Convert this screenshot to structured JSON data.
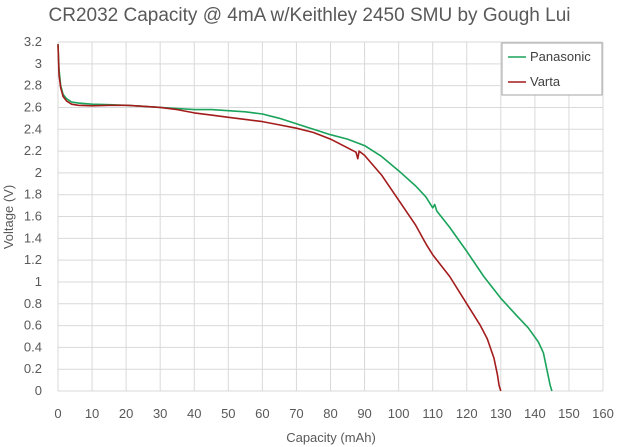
{
  "chart_data": {
    "type": "line",
    "title": "CR2032 Capacity @ 4mA w/Keithley 2450 SMU by Gough Lui",
    "xlabel": "Capacity (mAh)",
    "ylabel": "Voltage (V)",
    "xlim": [
      0,
      160
    ],
    "ylim": [
      0,
      3.2
    ],
    "xticks": [
      0,
      10,
      20,
      30,
      40,
      50,
      60,
      70,
      80,
      90,
      100,
      110,
      120,
      130,
      140,
      150,
      160
    ],
    "yticks": [
      0,
      0.2,
      0.4,
      0.6,
      0.8,
      1,
      1.2,
      1.4,
      1.6,
      1.8,
      2,
      2.2,
      2.4,
      2.6,
      2.8,
      3,
      3.2
    ],
    "grid": true,
    "legend_position": "top-right",
    "series": [
      {
        "name": "Panasonic",
        "color": "#1aa35a",
        "points": [
          [
            0,
            3.18
          ],
          [
            0.3,
            2.95
          ],
          [
            0.8,
            2.8
          ],
          [
            1.5,
            2.72
          ],
          [
            2.5,
            2.68
          ],
          [
            4,
            2.65
          ],
          [
            6,
            2.64
          ],
          [
            10,
            2.63
          ],
          [
            15,
            2.625
          ],
          [
            20,
            2.62
          ],
          [
            25,
            2.61
          ],
          [
            30,
            2.6
          ],
          [
            35,
            2.59
          ],
          [
            40,
            2.58
          ],
          [
            45,
            2.58
          ],
          [
            50,
            2.57
          ],
          [
            55,
            2.56
          ],
          [
            60,
            2.54
          ],
          [
            65,
            2.5
          ],
          [
            70,
            2.45
          ],
          [
            75,
            2.4
          ],
          [
            80,
            2.35
          ],
          [
            85,
            2.31
          ],
          [
            90,
            2.25
          ],
          [
            95,
            2.15
          ],
          [
            100,
            2.02
          ],
          [
            105,
            1.88
          ],
          [
            108,
            1.78
          ],
          [
            110,
            1.68
          ],
          [
            110.6,
            1.71
          ],
          [
            111.2,
            1.65
          ],
          [
            115,
            1.5
          ],
          [
            120,
            1.28
          ],
          [
            125,
            1.05
          ],
          [
            130,
            0.85
          ],
          [
            135,
            0.68
          ],
          [
            138,
            0.58
          ],
          [
            141,
            0.45
          ],
          [
            142.5,
            0.35
          ],
          [
            143.5,
            0.2
          ],
          [
            144.5,
            0.05
          ],
          [
            145,
            0
          ]
        ]
      },
      {
        "name": "Varta",
        "color": "#a31c1c",
        "points": [
          [
            0,
            3.18
          ],
          [
            0.3,
            2.9
          ],
          [
            0.8,
            2.78
          ],
          [
            1.5,
            2.7
          ],
          [
            2.5,
            2.66
          ],
          [
            4,
            2.63
          ],
          [
            6,
            2.62
          ],
          [
            10,
            2.615
          ],
          [
            15,
            2.62
          ],
          [
            20,
            2.62
          ],
          [
            25,
            2.61
          ],
          [
            30,
            2.6
          ],
          [
            35,
            2.58
          ],
          [
            40,
            2.55
          ],
          [
            45,
            2.53
          ],
          [
            50,
            2.51
          ],
          [
            55,
            2.49
          ],
          [
            60,
            2.47
          ],
          [
            65,
            2.44
          ],
          [
            70,
            2.41
          ],
          [
            75,
            2.37
          ],
          [
            80,
            2.31
          ],
          [
            85,
            2.23
          ],
          [
            87.5,
            2.19
          ],
          [
            88,
            2.13
          ],
          [
            88.4,
            2.2
          ],
          [
            90,
            2.16
          ],
          [
            95,
            1.98
          ],
          [
            100,
            1.75
          ],
          [
            105,
            1.52
          ],
          [
            108,
            1.35
          ],
          [
            110,
            1.25
          ],
          [
            115,
            1.05
          ],
          [
            120,
            0.8
          ],
          [
            124,
            0.6
          ],
          [
            126,
            0.48
          ],
          [
            128,
            0.3
          ],
          [
            129,
            0.15
          ],
          [
            129.5,
            0.05
          ],
          [
            130,
            0
          ]
        ]
      }
    ]
  }
}
